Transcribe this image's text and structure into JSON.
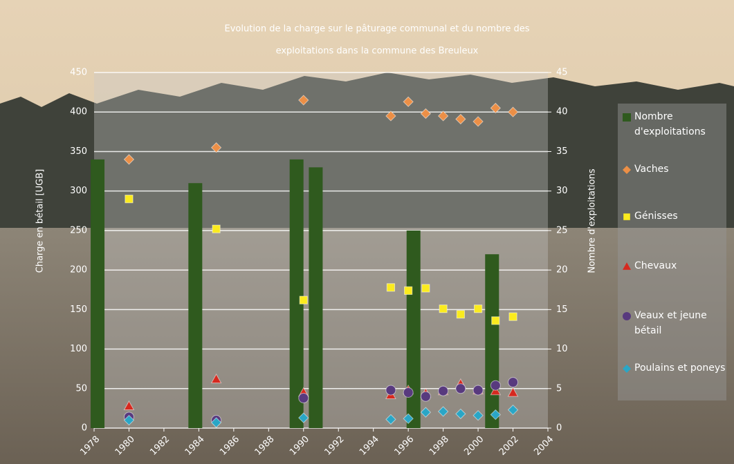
{
  "chart_data": {
    "type": "combo",
    "title": [
      "Evolution de la charge sur le pâturage communal et du nombre des",
      "exploitations dans la commune des Breuleux"
    ],
    "y_label": "Charge en bétail [UGB]",
    "y2_label": "Nombre d'exploitations",
    "xlim": [
      1978,
      2004
    ],
    "xticks": [
      1978,
      1980,
      1982,
      1984,
      1986,
      1988,
      1990,
      1992,
      1994,
      1996,
      1998,
      2000,
      2002,
      2004
    ],
    "ylim": [
      0,
      450
    ],
    "yticks": [
      0,
      50,
      100,
      150,
      200,
      250,
      300,
      350,
      400,
      450
    ],
    "y2lim": [
      0,
      45
    ],
    "y2ticks": [
      0,
      5,
      10,
      15,
      20,
      25,
      30,
      35,
      40,
      45
    ],
    "grid": true,
    "legend": "right",
    "series": [
      {
        "name": "Nombre d'exploitations",
        "type": "bar",
        "axis": "y2",
        "color": "#2f5a1e",
        "x": [
          1978.2,
          1983.8,
          1989.6,
          1990.7,
          1996.3,
          2000.8
        ],
        "values": [
          34,
          31,
          34,
          33,
          25,
          22
        ]
      },
      {
        "name": "Vaches",
        "type": "scatter",
        "marker": "diamond",
        "color": "#ec8f46",
        "x": [
          1980,
          1985,
          1990,
          1995,
          1996,
          1997,
          1998,
          1999,
          2000,
          2001,
          2002
        ],
        "values": [
          340,
          355,
          415,
          395,
          413,
          398,
          395,
          391,
          388,
          405,
          400
        ]
      },
      {
        "name": "Génisses",
        "type": "scatter",
        "marker": "square",
        "color": "#fbeb1e",
        "x": [
          1980,
          1985,
          1990,
          1995,
          1996,
          1997,
          1998,
          1999,
          2000,
          2001,
          2002
        ],
        "values": [
          290,
          252,
          162,
          178,
          174,
          177,
          151,
          144,
          151,
          136,
          141
        ]
      },
      {
        "name": "Chevaux",
        "type": "scatter",
        "marker": "triangle",
        "color": "#d6291f",
        "x": [
          1980,
          1985,
          1990,
          1995,
          1996,
          1997,
          1998,
          1999,
          2000,
          2001,
          2002
        ],
        "values": [
          28,
          62,
          45,
          42,
          48,
          44,
          47,
          56,
          48,
          47,
          45
        ]
      },
      {
        "name": "Veaux et jeune bétail",
        "type": "scatter",
        "marker": "circle",
        "color": "#583a7e",
        "x": [
          1980,
          1985,
          1990,
          1995,
          1996,
          1997,
          1998,
          1999,
          2000,
          2001,
          2002
        ],
        "values": [
          14,
          10,
          38,
          48,
          45,
          40,
          47,
          50,
          48,
          54,
          58
        ]
      },
      {
        "name": "Poulains et poneys",
        "type": "scatter",
        "marker": "diamond",
        "color": "#2aa6c6",
        "x": [
          1980,
          1985,
          1990,
          1995,
          1996,
          1997,
          1998,
          1999,
          2000,
          2001,
          2002
        ],
        "values": [
          10,
          7,
          13,
          11,
          12,
          20,
          21,
          18,
          16,
          17,
          23
        ]
      }
    ]
  }
}
